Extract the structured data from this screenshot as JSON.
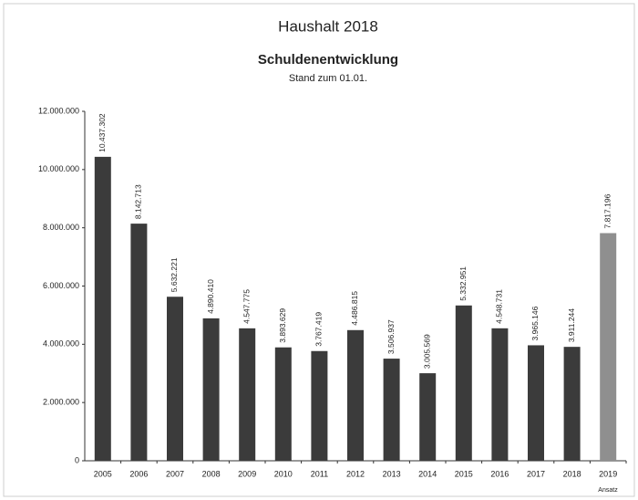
{
  "chart_data": {
    "type": "bar",
    "title": "Haushalt 2018",
    "subtitle": "Schuldenentwicklung",
    "subtitle2": "Stand zum 01.01.",
    "annotation": "Ansatz",
    "categories": [
      "2005",
      "2006",
      "2007",
      "2008",
      "2009",
      "2010",
      "2011",
      "2012",
      "2013",
      "2014",
      "2015",
      "2016",
      "2017",
      "2018",
      "2019"
    ],
    "values": [
      10437302,
      8142713,
      5632221,
      4890410,
      4547775,
      3893629,
      3767419,
      4486815,
      3506937,
      3005569,
      5332951,
      4548731,
      3965146,
      3911244,
      7817196
    ],
    "value_labels": [
      "10.437.302",
      "8.142.713",
      "5.632.221",
      "4.890.410",
      "4.547.775",
      "3.893.629",
      "3.767.419",
      "4.486.815",
      "3.506.937",
      "3.005.569",
      "5.332.951",
      "4.548.731",
      "3.965.146",
      "3.911.244",
      "7.817.196"
    ],
    "colors": [
      "#3b3b3b",
      "#3b3b3b",
      "#3b3b3b",
      "#3b3b3b",
      "#3b3b3b",
      "#3b3b3b",
      "#3b3b3b",
      "#3b3b3b",
      "#3b3b3b",
      "#3b3b3b",
      "#3b3b3b",
      "#3b3b3b",
      "#3b3b3b",
      "#3b3b3b",
      "#8f8f8f"
    ],
    "ylim": [
      0,
      12000000
    ],
    "yticks": [
      {
        "value": 0,
        "label": "0"
      },
      {
        "value": 2000000,
        "label": "2.000.000"
      },
      {
        "value": 4000000,
        "label": "4.000.000"
      },
      {
        "value": 6000000,
        "label": "6.000.000"
      },
      {
        "value": 8000000,
        "label": "8.000.000"
      },
      {
        "value": 10000000,
        "label": "10.000.000"
      },
      {
        "value": 12000000,
        "label": "12.000.000"
      }
    ],
    "grid": false
  }
}
